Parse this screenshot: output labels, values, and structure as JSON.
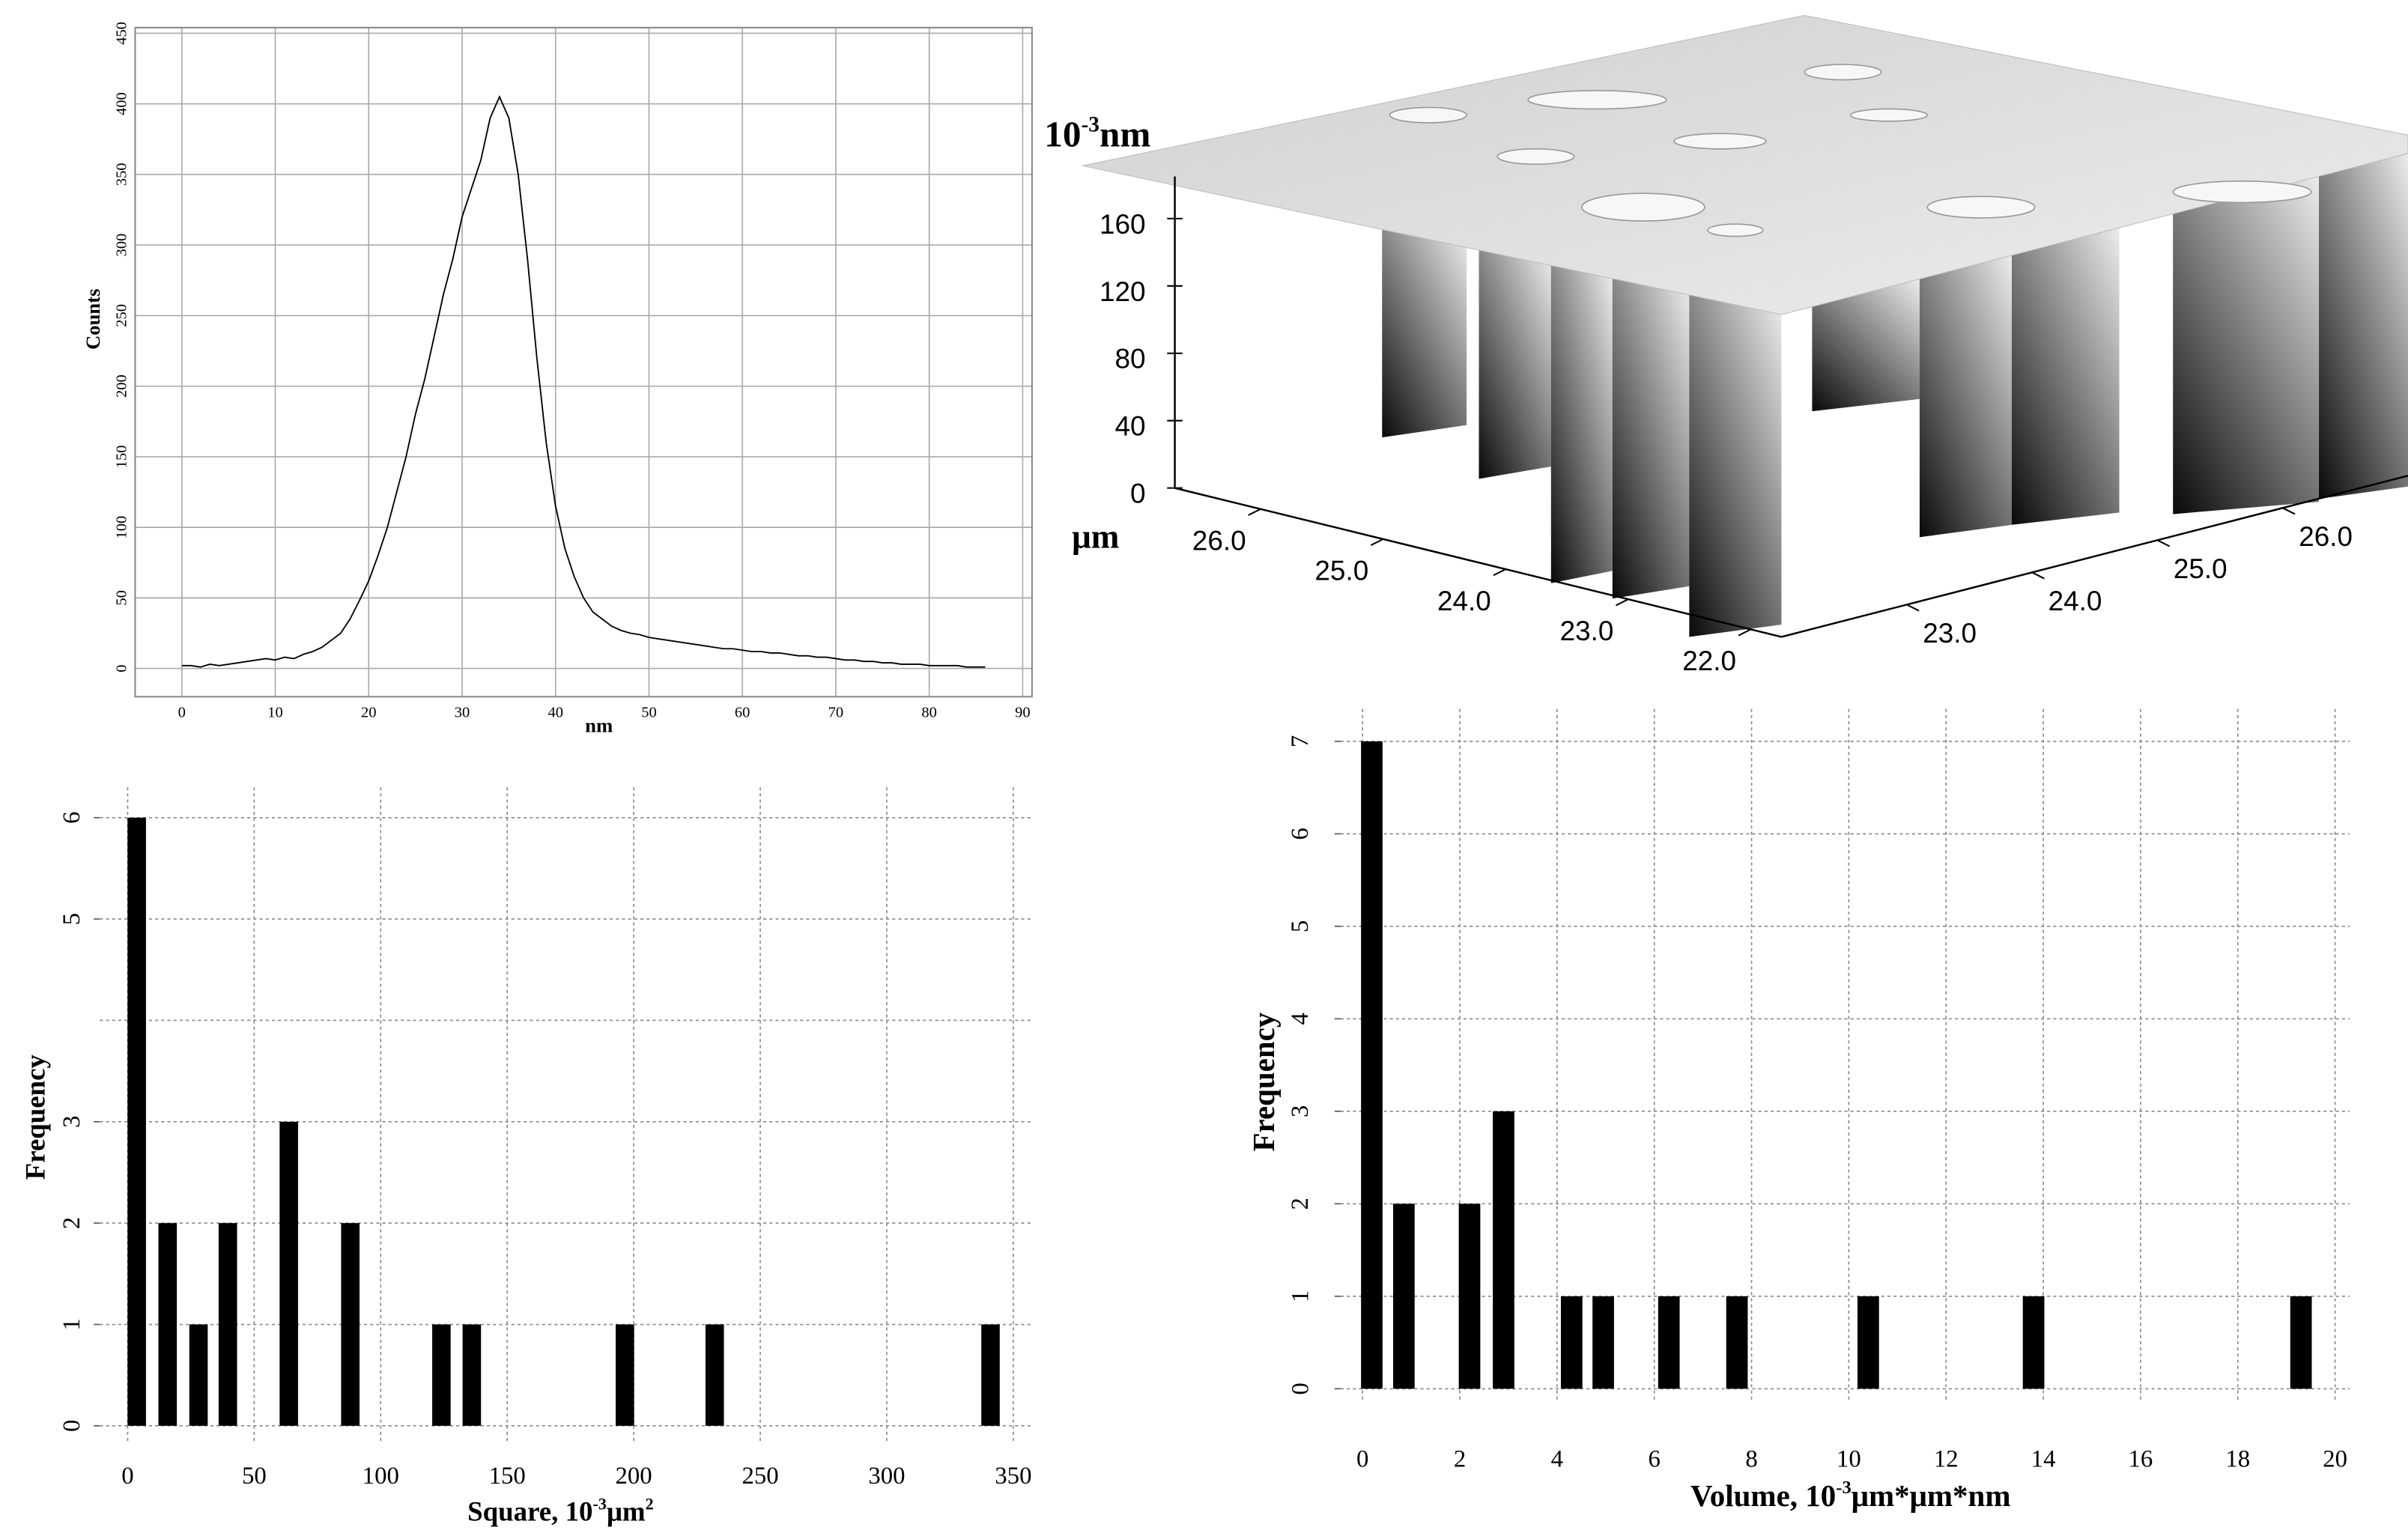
{
  "chart_data": [
    {
      "type": "line",
      "xlabel": "nm",
      "ylabel": "Counts",
      "color": "#000000",
      "grid": "solid",
      "x": [
        0,
        1,
        2,
        3,
        4,
        5,
        6,
        7,
        8,
        9,
        10,
        11,
        12,
        13,
        14,
        15,
        16,
        17,
        18,
        19,
        20,
        21,
        22,
        23,
        24,
        25,
        26,
        27,
        28,
        29,
        30,
        31,
        32,
        33,
        34,
        35,
        36,
        37,
        38,
        39,
        40,
        41,
        42,
        43,
        44,
        45,
        46,
        47,
        48,
        49,
        50,
        51,
        52,
        53,
        54,
        55,
        56,
        57,
        58,
        59,
        60,
        61,
        62,
        63,
        64,
        65,
        66,
        67,
        68,
        69,
        70,
        71,
        72,
        73,
        74,
        75,
        76,
        77,
        78,
        79,
        80,
        81,
        82,
        83,
        84,
        85,
        86
      ],
      "values": [
        2,
        2,
        1,
        3,
        2,
        3,
        4,
        5,
        6,
        7,
        6,
        8,
        7,
        10,
        12,
        15,
        20,
        25,
        35,
        48,
        62,
        80,
        100,
        125,
        150,
        180,
        205,
        235,
        265,
        290,
        320,
        340,
        360,
        390,
        405,
        390,
        350,
        290,
        220,
        160,
        115,
        85,
        65,
        50,
        40,
        35,
        30,
        27,
        25,
        24,
        22,
        21,
        20,
        19,
        18,
        17,
        16,
        15,
        14,
        14,
        13,
        12,
        12,
        11,
        11,
        10,
        9,
        9,
        8,
        8,
        7,
        6,
        6,
        5,
        5,
        4,
        4,
        3,
        3,
        3,
        2,
        2,
        2,
        2,
        1,
        1,
        1
      ],
      "xlim": [
        -5,
        91
      ],
      "ylim": [
        -20,
        454
      ],
      "xticks": [
        0,
        10,
        20,
        30,
        40,
        50,
        60,
        70,
        80,
        90
      ],
      "yticks": [
        0,
        50,
        100,
        150,
        200,
        250,
        300,
        350,
        400,
        450
      ]
    },
    {
      "type": "surface",
      "zlabel_base": "10",
      "zlabel_exp": "-3",
      "zlabel_unit": "nm",
      "xylabel": "μm",
      "zlim": [
        0,
        185
      ],
      "zticks": [
        0,
        40,
        80,
        120,
        160
      ],
      "xlim": [
        26.7,
        21.75
      ],
      "xticks": [
        {
          "value": 26,
          "label": "26.0"
        },
        {
          "value": 25,
          "label": "25.0"
        },
        {
          "value": 24,
          "label": "24.0"
        },
        {
          "value": 23,
          "label": "23.0"
        },
        {
          "value": 22,
          "label": "22.0"
        }
      ],
      "ylim": [
        22.0,
        27.0
      ],
      "yticks": [
        {
          "value": 23,
          "label": "23.0"
        },
        {
          "value": 24,
          "label": "24.0"
        },
        {
          "value": 25,
          "label": "25.0"
        },
        {
          "value": 26,
          "label": "26.0"
        }
      ]
    },
    {
      "type": "bar",
      "xlabel_main": "Square, 10",
      "xlabel_exp": "-3",
      "xlabel_unit": "μm",
      "xlabel_unit_exp": "2",
      "ylabel": "Frequency",
      "color": "#000000",
      "grid": "dotted",
      "x": [
        3.6,
        15.8,
        28,
        39.6,
        63.7,
        88,
        124,
        136,
        196.5,
        232,
        341
      ],
      "values": [
        6,
        2,
        1,
        2,
        3,
        2,
        1,
        1,
        1,
        1,
        1
      ],
      "xlim": [
        -11,
        358
      ],
      "ylim": [
        -0.15,
        6.3
      ],
      "xticks": [
        0,
        50,
        100,
        150,
        200,
        250,
        300,
        350
      ],
      "yticks": [
        0,
        1,
        2,
        3,
        5,
        6
      ],
      "ygrid": [
        0,
        1,
        2,
        3,
        4,
        5,
        6
      ]
    },
    {
      "type": "bar",
      "xlabel_main": "Volume, 10",
      "xlabel_exp": "-3",
      "xlabel_unit": "μm*μm*nm",
      "ylabel": "Frequency",
      "color": "#000000",
      "grid": "dotted",
      "x": [
        0.19,
        0.85,
        2.2,
        2.9,
        4.3,
        4.95,
        6.3,
        7.7,
        10.4,
        13.8,
        19.3
      ],
      "values": [
        7,
        2,
        2,
        3,
        1,
        1,
        1,
        1,
        1,
        1,
        1
      ],
      "xlim": [
        -0.45,
        20.3
      ],
      "ylim": [
        -0.15,
        7.35
      ],
      "xticks": [
        0,
        2,
        4,
        6,
        8,
        10,
        12,
        14,
        16,
        18,
        20
      ],
      "yticks": [
        0,
        1,
        2,
        3,
        4,
        5,
        6,
        7
      ],
      "ygrid": [
        0,
        1,
        2,
        3,
        4,
        5,
        6,
        7
      ]
    }
  ]
}
